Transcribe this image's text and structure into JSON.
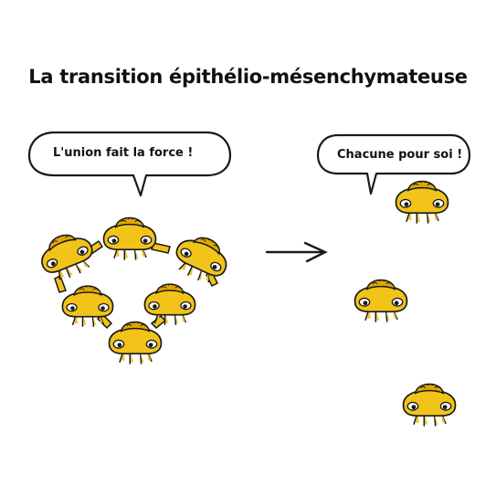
{
  "title": "La transition épithélio-mésenchymateuse",
  "bubbles": {
    "left": "L'union fait la force !",
    "right": "Chacune pour soi !"
  },
  "colors": {
    "cell_fill": "#f2c318",
    "cell_dark": "#e0a800",
    "outline": "#1a1a1a",
    "background": "#ffffff"
  }
}
